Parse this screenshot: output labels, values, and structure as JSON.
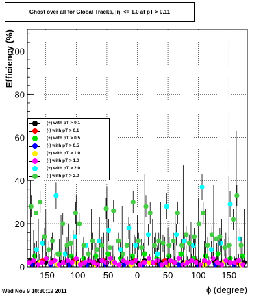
{
  "title": "Ghost over all for Global Tracks, |η| <= 1.0 at pT > 0.11",
  "timestamp": "Wed Nov  9 10:30:19 2011",
  "chart_data": {
    "type": "scatter",
    "xlabel": "ϕ (degree)",
    "ylabel": "Efficiency (%)",
    "xlim": [
      -180,
      180
    ],
    "ylim": [
      0,
      110
    ],
    "xticks": [
      -150,
      -100,
      -50,
      0,
      50,
      100,
      150
    ],
    "yticks": [
      0,
      20,
      40,
      60,
      80,
      100
    ],
    "grid": true,
    "legend_position": "left",
    "series": [
      {
        "name": "(+) with pT > 0.1",
        "color": "#000000",
        "x": [
          -175,
          -162,
          -150,
          -138,
          -125,
          -112,
          -100,
          -88,
          -75,
          -62,
          -50,
          -38,
          -25,
          -12,
          0,
          12,
          25,
          38,
          50,
          62,
          75,
          88,
          100,
          112,
          125,
          138,
          150,
          162,
          175
        ],
        "y": [
          3,
          2,
          2,
          3,
          2,
          2,
          3,
          2,
          2,
          3,
          2,
          2,
          3,
          2,
          2,
          3,
          2,
          2,
          3,
          2,
          2,
          3,
          2,
          2,
          3,
          2,
          2,
          3,
          2
        ],
        "err": [
          38,
          20,
          25,
          15,
          22,
          18,
          30,
          12,
          25,
          20,
          35,
          15,
          25,
          18,
          22,
          40,
          20,
          28,
          15,
          22,
          45,
          18,
          30,
          25,
          35,
          20,
          40,
          60,
          25
        ]
      },
      {
        "name": "(-) with pT > 0.1",
        "color": "#ff0000",
        "x": [
          -170,
          -155,
          -140,
          -120,
          -105,
          -90,
          -70,
          -55,
          -40,
          -20,
          -5,
          10,
          30,
          45,
          60,
          80,
          95,
          110,
          130,
          145,
          165
        ],
        "y": [
          2,
          3,
          2,
          2,
          3,
          2,
          2,
          3,
          2,
          2,
          3,
          2,
          2,
          3,
          2,
          2,
          3,
          2,
          2,
          3,
          2
        ],
        "err": [
          15,
          10,
          12,
          8,
          14,
          9,
          11,
          13,
          8,
          10,
          12,
          9,
          14,
          11,
          10,
          8,
          12,
          10,
          9,
          13,
          11
        ]
      },
      {
        "name": "(+) with pT > 0.5",
        "color": "#00dd00",
        "x": [
          -168,
          -148,
          -128,
          -108,
          -88,
          -68,
          -48,
          -28,
          -8,
          12,
          32,
          52,
          72,
          92,
          112,
          132,
          152,
          172
        ],
        "y": [
          5,
          4,
          6,
          5,
          4,
          5,
          6,
          4,
          5,
          6,
          4,
          5,
          6,
          4,
          5,
          6,
          4,
          5
        ],
        "err": [
          6,
          5,
          7,
          6,
          5,
          6,
          7,
          5,
          6,
          7,
          5,
          6,
          7,
          5,
          6,
          7,
          5,
          6
        ]
      },
      {
        "name": "(-) with pT > 0.5",
        "color": "#0000ff",
        "x": [
          -172,
          -142,
          -112,
          -82,
          -52,
          -22,
          8,
          38,
          68,
          98,
          128,
          158
        ],
        "y": [
          1,
          1,
          1,
          1,
          1,
          1,
          1,
          1,
          1,
          1,
          1,
          1
        ],
        "err": [
          3,
          3,
          3,
          3,
          3,
          3,
          3,
          3,
          3,
          3,
          3,
          3
        ]
      },
      {
        "name": "(+) with pT > 1.0",
        "color": "#ffee00",
        "x": [
          -160,
          -130,
          -100,
          -70,
          -40,
          -10,
          20,
          50,
          80,
          110,
          140,
          170
        ],
        "y": [
          2,
          1,
          2,
          1,
          2,
          1,
          2,
          1,
          2,
          1,
          2,
          1
        ],
        "err": [
          4,
          4,
          4,
          4,
          4,
          4,
          4,
          4,
          4,
          4,
          4,
          4
        ]
      },
      {
        "name": "(-) with pT > 1.0",
        "color": "#ff00ff",
        "x": [
          -177,
          -170,
          -163,
          -156,
          -149,
          -142,
          -135,
          -128,
          -121,
          -114,
          -107,
          -100,
          -93,
          -86,
          -79,
          -72,
          -65,
          -58,
          -51,
          -44,
          -37,
          -30,
          -23,
          -16,
          -9,
          -2,
          5,
          12,
          19,
          26,
          33,
          40,
          47,
          54,
          61,
          68,
          75,
          82,
          89,
          96,
          103,
          110,
          117,
          124,
          131,
          138,
          145,
          152,
          159,
          166,
          173
        ],
        "y": [
          2,
          3,
          1,
          2,
          4,
          2,
          3,
          1,
          2,
          3,
          2,
          4,
          1,
          2,
          3,
          2,
          1,
          3,
          2,
          4,
          2,
          1,
          3,
          2,
          2,
          3,
          1,
          2,
          4,
          2,
          3,
          1,
          2,
          3,
          2,
          4,
          1,
          2,
          3,
          2,
          1,
          3,
          2,
          4,
          2,
          1,
          3,
          2,
          2,
          3,
          1
        ],
        "err": [
          3,
          3,
          3,
          3,
          3,
          3,
          3,
          3,
          3,
          3,
          3,
          3,
          3,
          3,
          3,
          3,
          3,
          3,
          3,
          3,
          3,
          3,
          3,
          3,
          3,
          3,
          3,
          3,
          3,
          3,
          3,
          3,
          3,
          3,
          3,
          3,
          3,
          3,
          3,
          3,
          3,
          3,
          3,
          3,
          3,
          3,
          3,
          3,
          3,
          3,
          3
        ]
      },
      {
        "name": "(+) with pT > 2.0",
        "color": "#00ffff",
        "x": [
          -165,
          -155,
          -133,
          -118,
          -102,
          -84,
          -63,
          -47,
          -28,
          -14,
          -3,
          18,
          33,
          48,
          64,
          77,
          92,
          106,
          121,
          136,
          152,
          168
        ],
        "y": [
          8,
          11,
          33,
          6,
          14,
          10,
          12,
          17,
          8,
          18,
          10,
          15,
          6,
          28,
          15,
          12,
          10,
          37,
          8,
          11,
          29,
          13
        ],
        "err": [
          4,
          4,
          6,
          4,
          5,
          4,
          5,
          5,
          4,
          5,
          4,
          5,
          4,
          6,
          5,
          4,
          4,
          6,
          4,
          4,
          6,
          5
        ]
      },
      {
        "name": "(-) with pT > 2.0",
        "color": "#44cc44",
        "x": [
          -174,
          -166,
          -159,
          -152,
          -145,
          -139,
          -130,
          -122,
          -115,
          -109,
          -101,
          -95,
          -88,
          -80,
          -73,
          -66,
          -58,
          -51,
          -45,
          -39,
          -31,
          -24,
          -17,
          -7,
          2,
          7,
          14,
          21,
          28,
          35,
          42,
          52,
          59,
          66,
          73,
          80,
          85,
          93,
          101,
          108,
          115,
          122,
          129,
          135,
          143,
          150,
          157,
          163,
          170
        ],
        "y": [
          28,
          25,
          30,
          14,
          8,
          12,
          6,
          20,
          10,
          11,
          25,
          20,
          10,
          6,
          12,
          8,
          10,
          27,
          9,
          26,
          12,
          6,
          10,
          30,
          12,
          9,
          28,
          25,
          10,
          12,
          11,
          10,
          12,
          25,
          10,
          15,
          11,
          14,
          20,
          25,
          10,
          15,
          13,
          14,
          9,
          10,
          22,
          33,
          10
        ],
        "err": [
          5,
          5,
          5,
          4,
          4,
          4,
          3,
          5,
          4,
          4,
          5,
          5,
          4,
          3,
          4,
          4,
          4,
          5,
          4,
          5,
          4,
          3,
          4,
          5,
          4,
          4,
          5,
          5,
          4,
          4,
          4,
          4,
          4,
          5,
          4,
          4,
          4,
          4,
          5,
          5,
          4,
          4,
          4,
          4,
          4,
          4,
          5,
          5,
          4
        ]
      }
    ]
  }
}
